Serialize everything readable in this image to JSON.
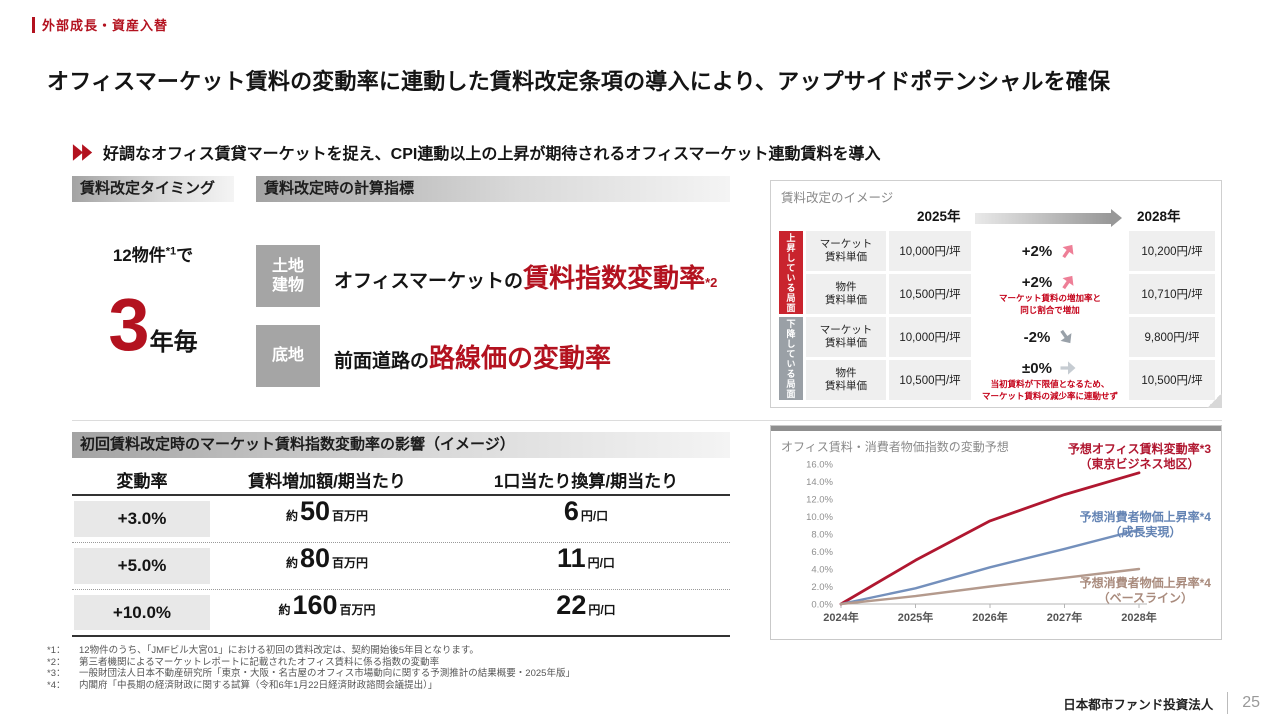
{
  "slide": {
    "tag": "外部成長・資産入替",
    "title": "オフィスマーケット賃料の変動率に連動した賃料改定条項の導入により、アップサイドポテンシャルを確保",
    "lead": "好調なオフィス賃貸マーケットを捉え、CPI連動以上の上昇が期待されるオフィスマーケット連動賃料を導入"
  },
  "revision": {
    "timing_header": "賃料改定タイミング",
    "calc_header": "賃料改定時の計算指標",
    "timing": {
      "prefix": "12物件",
      "sup": "*1",
      "suffix": "で",
      "big": "3",
      "unit": "年毎"
    },
    "calc_rows": [
      {
        "badge": "土地\n建物",
        "prefix": "オフィスマーケットの",
        "highlight": "賃料指数変動率",
        "sup": "*2"
      },
      {
        "badge": "底地",
        "prefix": "前面道路の",
        "highlight": "路線価の変動率",
        "sup": ""
      }
    ]
  },
  "image_panel": {
    "title": "賃料改定のイメージ",
    "year_start": "2025年",
    "year_end": "2028年",
    "groups": [
      {
        "label": "上昇している局面"
      },
      {
        "label": "下降している局面"
      }
    ],
    "rows": [
      {
        "name": "マーケット\n賃料単価",
        "start": "10,000円/坪",
        "change": "+2%",
        "note": "",
        "end": "10,200円/坪",
        "dir": "up"
      },
      {
        "name": "物件\n賃料単価",
        "start": "10,500円/坪",
        "change": "+2%",
        "note": "マーケット賃料の増加率と\n同じ割合で増加",
        "end": "10,710円/坪",
        "dir": "up"
      },
      {
        "name": "マーケット\n賃料単価",
        "start": "10,000円/坪",
        "change": "-2%",
        "note": "",
        "end": "9,800円/坪",
        "dir": "down"
      },
      {
        "name": "物件\n賃料単価",
        "start": "10,500円/坪",
        "change": "±0%",
        "note": "当初賃料が下限値となるため、\nマーケット賃料の減少率に連動せず",
        "end": "10,500円/坪",
        "dir": "flat"
      }
    ]
  },
  "impact": {
    "title": "初回賃料改定時のマーケット賃料指数変動率の影響（イメージ）",
    "headers": [
      "変動率",
      "賃料増加額/期当たり",
      "1口当たり換算/期当たり"
    ],
    "rows": [
      {
        "rate": "+3.0%",
        "approx": "約",
        "amount": "50",
        "amount_unit": "百万円",
        "per": "6",
        "per_unit": "円/口"
      },
      {
        "rate": "+5.0%",
        "approx": "約",
        "amount": "80",
        "amount_unit": "百万円",
        "per": "11",
        "per_unit": "円/口"
      },
      {
        "rate": "+10.0%",
        "approx": "約",
        "amount": "160",
        "amount_unit": "百万円",
        "per": "22",
        "per_unit": "円/口"
      }
    ]
  },
  "chart_data": {
    "type": "line",
    "title": "オフィス賃料・消費者物価指数の変動予想",
    "x": [
      "2024年",
      "2025年",
      "2026年",
      "2027年",
      "2028年"
    ],
    "series": [
      {
        "name": "予想オフィス賃料変動率*3（東京ビジネス地区）",
        "color": "#b01730",
        "values": [
          0,
          5.0,
          9.5,
          12.5,
          15.0
        ]
      },
      {
        "name": "予想消費者物価上昇率*4（成長実現）",
        "color": "#7490bc",
        "values": [
          0,
          1.8,
          4.2,
          6.3,
          8.5
        ]
      },
      {
        "name": "予想消費者物価上昇率*4（ベースライン）",
        "color": "#b49a8d",
        "values": [
          0,
          0.9,
          2.0,
          3.0,
          4.0
        ]
      }
    ],
    "ylim": [
      0,
      16
    ],
    "y_ticks": [
      {
        "label": "16.0%",
        "value": 16
      },
      {
        "label": "14.0%",
        "value": 14
      },
      {
        "label": "12.0%",
        "value": 12
      },
      {
        "label": "10.0%",
        "value": 10
      },
      {
        "label": "8.0%",
        "value": 8
      },
      {
        "label": "6.0%",
        "value": 6
      },
      {
        "label": "4.0%",
        "value": 4
      },
      {
        "label": "2.0%",
        "value": 2
      },
      {
        "label": "0.0%",
        "value": 0
      }
    ],
    "grid": false,
    "legend_position": "right-overlay",
    "legend": [
      {
        "line1": "予想オフィス賃料変動率*3",
        "line2": "（東京ビジネス地区）",
        "color": "#b01730"
      },
      {
        "line1": "予想消費者物価上昇率*4",
        "line2": "（成長実現）",
        "color": "#6484b4"
      },
      {
        "line1": "予想消費者物価上昇率*4",
        "line2": "（ベースライン）",
        "color": "#a98b7d"
      }
    ]
  },
  "footnotes": [
    {
      "label": "*1：",
      "text": "12物件のうち、「JMFビル大宮01」における初回の賃料改定は、契約開始後5年目となります。"
    },
    {
      "label": "*2：",
      "text": "第三者機関によるマーケットレポートに記載されたオフィス賃料に係る指数の変動率"
    },
    {
      "label": "*3：",
      "text": "一般財団法人日本不動産研究所「東京・大阪・名古屋のオフィス市場動向に関する予測推計の結果概要・2025年版」"
    },
    {
      "label": "*4：",
      "text": "内閣府「中長期の経済財政に関する試算（令和6年1月22日経済財政諮問会議提出）」"
    }
  ],
  "footer": {
    "company": "日本都市ファンド投資法人",
    "page": "25"
  },
  "colors": {
    "accent": "#b3121f",
    "note_red": "#c40018",
    "band_red": "#c9242e",
    "band_gray": "#9aa0a6"
  }
}
